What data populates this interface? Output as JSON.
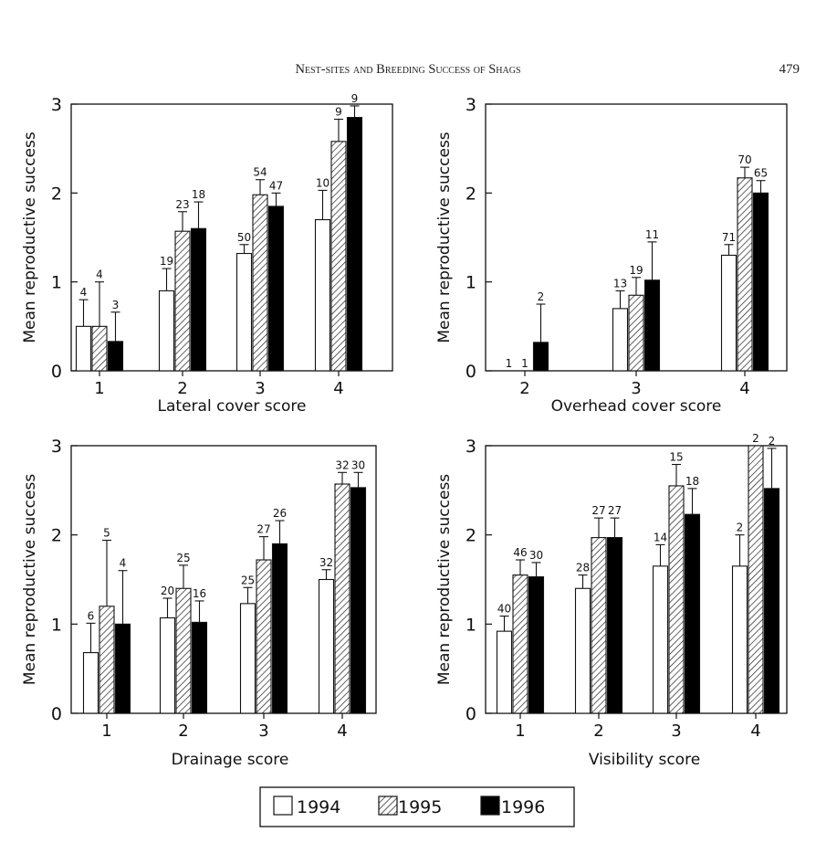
{
  "header": {
    "running_title": "Nest-sites and Breeding Success of Shags",
    "page_number": "479"
  },
  "legend": [
    {
      "label": "1994",
      "style": "open"
    },
    {
      "label": "1995",
      "style": "hatched"
    },
    {
      "label": "1996",
      "style": "solid"
    }
  ],
  "chart_data": [
    {
      "type": "bar",
      "xlabel": "Lateral cover score",
      "ylabel": "Mean reproductive success",
      "ylim": [
        0,
        3
      ],
      "yticks": [
        "0",
        "1",
        "2",
        "3"
      ],
      "categories": [
        "1",
        "2",
        "3",
        "4"
      ],
      "series": [
        {
          "name": "1994",
          "values": [
            0.5,
            0.9,
            1.32,
            1.7
          ],
          "errors": [
            0.3,
            0.25,
            0.1,
            0.33
          ],
          "n": [
            "4",
            "19",
            "50",
            "10"
          ]
        },
        {
          "name": "1995",
          "values": [
            0.5,
            1.57,
            1.98,
            2.58
          ],
          "errors": [
            0.5,
            0.22,
            0.17,
            0.25
          ],
          "n": [
            "4",
            "23",
            "54",
            "9"
          ]
        },
        {
          "name": "1996",
          "values": [
            0.33,
            1.6,
            1.85,
            2.85
          ],
          "errors": [
            0.33,
            0.3,
            0.15,
            0.13
          ],
          "n": [
            "3",
            "18",
            "47",
            "9"
          ]
        }
      ]
    },
    {
      "type": "bar",
      "xlabel": "Overhead cover  score",
      "ylabel": "Mean reproductive success",
      "ylim": [
        0,
        3
      ],
      "yticks": [
        "0",
        "1",
        "2",
        "3"
      ],
      "categories": [
        "2",
        "3",
        "4"
      ],
      "series": [
        {
          "name": "1994",
          "values": [
            0,
            0.7,
            1.3
          ],
          "errors": [
            0,
            0.2,
            0.12
          ],
          "n": [
            "1",
            "13",
            "71"
          ]
        },
        {
          "name": "1995",
          "values": [
            0,
            0.85,
            2.17
          ],
          "errors": [
            0,
            0.2,
            0.12
          ],
          "n": [
            "1",
            "19",
            "70"
          ]
        },
        {
          "name": "1996",
          "values": [
            0.32,
            1.02,
            2.0
          ],
          "errors": [
            0.43,
            0.43,
            0.14
          ],
          "n": [
            "2",
            "11",
            "65"
          ]
        }
      ]
    },
    {
      "type": "bar",
      "xlabel": "Drainage score",
      "ylabel": "Mean reproductive success",
      "ylim": [
        0,
        3
      ],
      "yticks": [
        "0",
        "1",
        "2",
        "3"
      ],
      "categories": [
        "1",
        "2",
        "3",
        "4"
      ],
      "series": [
        {
          "name": "1994",
          "values": [
            0.68,
            1.07,
            1.23,
            1.5
          ],
          "errors": [
            0.33,
            0.22,
            0.18,
            0.11
          ],
          "n": [
            "6",
            "20",
            "25",
            "32"
          ]
        },
        {
          "name": "1995",
          "values": [
            1.2,
            1.4,
            1.72,
            2.57
          ],
          "errors": [
            0.74,
            0.26,
            0.26,
            0.13
          ],
          "n": [
            "5",
            "25",
            "27",
            "32"
          ]
        },
        {
          "name": "1996",
          "values": [
            1.0,
            1.02,
            1.9,
            2.53
          ],
          "errors": [
            0.6,
            0.24,
            0.26,
            0.17
          ],
          "n": [
            "4",
            "16",
            "26",
            "30"
          ]
        }
      ]
    },
    {
      "type": "bar",
      "xlabel": "Visibility score",
      "ylabel": "Mean reproductive success",
      "ylim": [
        0,
        3
      ],
      "yticks": [
        "0",
        "1",
        "2",
        "3"
      ],
      "categories": [
        "1",
        "2",
        "3",
        "4"
      ],
      "series": [
        {
          "name": "1994",
          "values": [
            0.92,
            1.4,
            1.65,
            1.65
          ],
          "errors": [
            0.17,
            0.15,
            0.24,
            0.35
          ],
          "n": [
            "40",
            "28",
            "14",
            "2"
          ]
        },
        {
          "name": "1995",
          "values": [
            1.55,
            1.97,
            2.55,
            3.0
          ],
          "errors": [
            0.17,
            0.22,
            0.24,
            0.0
          ],
          "n": [
            "46",
            "27",
            "15",
            "2"
          ]
        },
        {
          "name": "1996",
          "values": [
            1.53,
            1.97,
            2.23,
            2.52
          ],
          "errors": [
            0.16,
            0.22,
            0.29,
            0.45
          ],
          "n": [
            "30",
            "27",
            "18",
            "2"
          ]
        }
      ]
    }
  ]
}
